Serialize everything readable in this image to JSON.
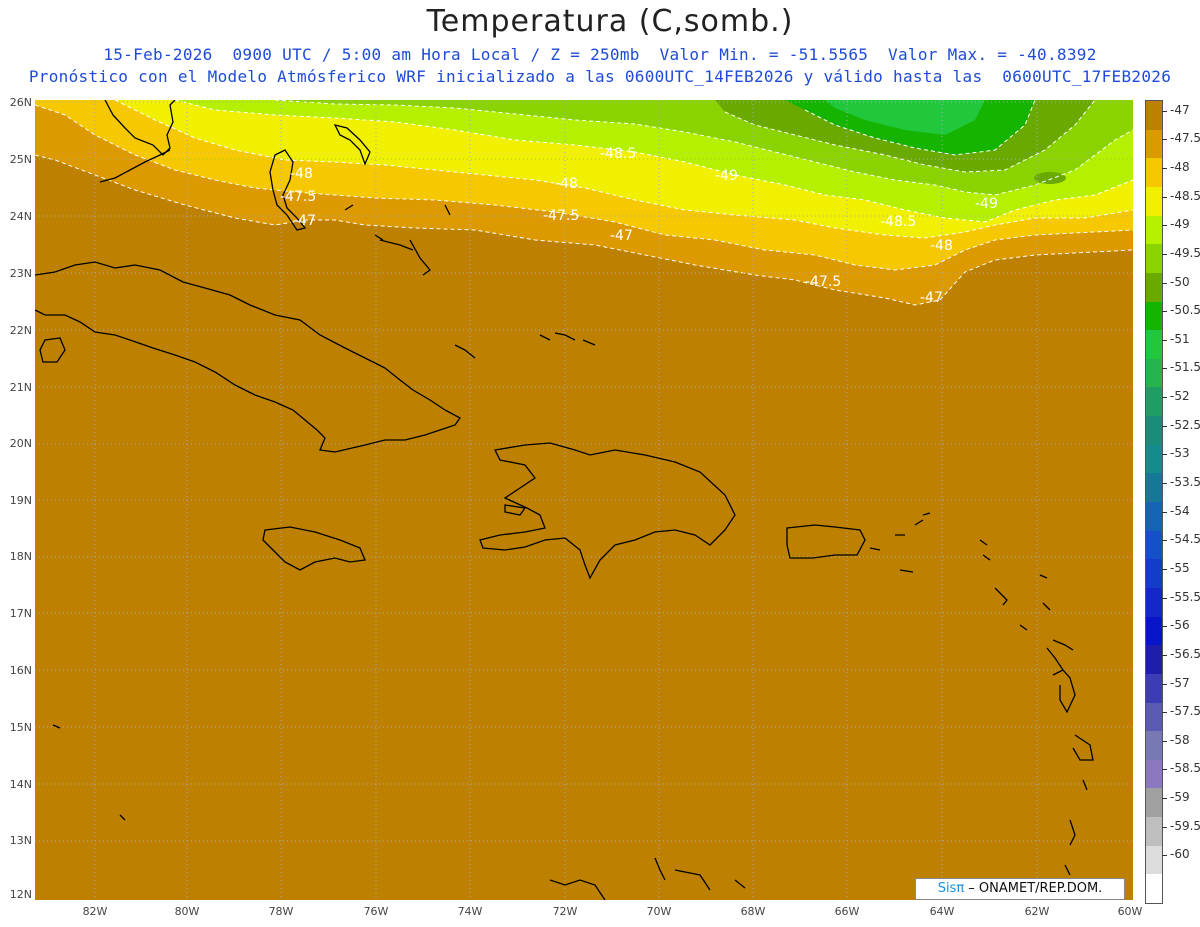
{
  "header": {
    "title": "Temperatura (C,somb.)",
    "line1": "15-Feb-2026  0900 UTC / 5:00 am Hora Local / Z = 250mb  Valor Min. = -51.5565  Valor Max. = -40.8392",
    "line2": "Pronóstico con el Modelo Atmósferico WRF inicializado a las 0600UTC_14FEB2026 y válido hasta las  0600UTC_17FEB2026"
  },
  "map": {
    "lat_labels": [
      "26N",
      "25N",
      "24N",
      "23N",
      "22N",
      "21N",
      "20N",
      "19N",
      "18N",
      "17N",
      "16N",
      "15N",
      "14N",
      "13N",
      "12N"
    ],
    "lon_labels": [
      "82W",
      "80W",
      "78W",
      "76W",
      "74W",
      "72W",
      "70W",
      "68W",
      "66W",
      "64W",
      "62W",
      "60W"
    ],
    "contour_labels": [
      "-48",
      "-47.5",
      "-47",
      "-48.5",
      "-48",
      "-47.5",
      "-47",
      "-49",
      "-49",
      "-48.5",
      "-48",
      "-47.5",
      "-47"
    ],
    "background_color": "#bd8000"
  },
  "colorbar": {
    "labels": [
      "-47",
      "-47.5",
      "-48",
      "-48.5",
      "-49",
      "-49.5",
      "-50",
      "-50.5",
      "-51",
      "-51.5",
      "-52",
      "-52.5",
      "-53",
      "-53.5",
      "-54",
      "-54.5",
      "-55",
      "-55.5",
      "-56",
      "-56.5",
      "-57",
      "-57.5",
      "-58",
      "-58.5",
      "-59",
      "-59.5",
      "-60"
    ],
    "colors": [
      "#bd8000",
      "#dc9a00",
      "#f5c800",
      "#f0f000",
      "#b4f000",
      "#8ad200",
      "#6aaa00",
      "#14b400",
      "#22c83c",
      "#28b44c",
      "#1e9e64",
      "#1a8c7a",
      "#148c8c",
      "#147896",
      "#1464b4",
      "#1450c8",
      "#143cc8",
      "#1428c8",
      "#0a14c8",
      "#1e1eaa",
      "#3c3cb4",
      "#5a5ab4",
      "#7878b4",
      "#8c78be",
      "#a0a0a0",
      "#bebebe",
      "#dcdcdc",
      "#ffffff"
    ]
  },
  "credit": {
    "brand": "Sisπ",
    "text": " – ONAMET/REP.DOM."
  }
}
